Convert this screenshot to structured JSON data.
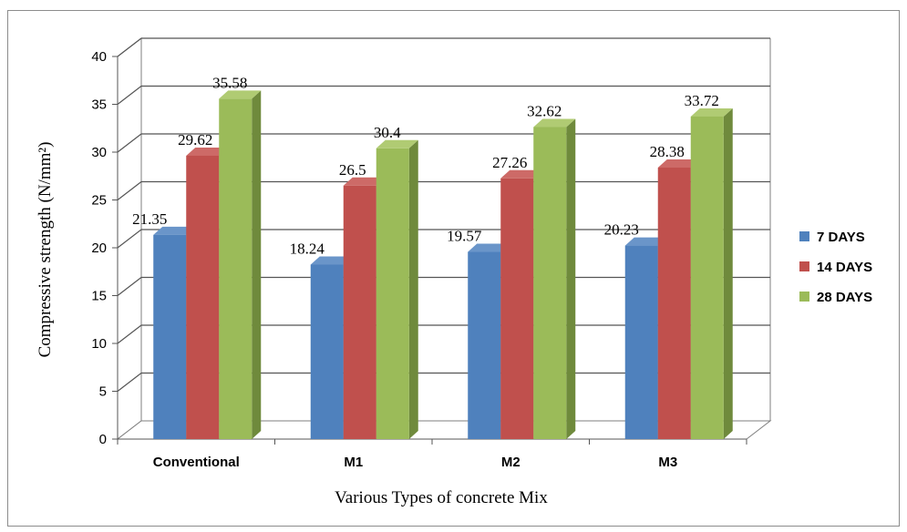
{
  "chart_data": {
    "type": "bar",
    "title": "",
    "xlabel": "Various Types of concrete Mix",
    "ylabel": "Compressive strength (N/mm²)",
    "ylim": [
      0,
      40
    ],
    "ytick_step": 5,
    "grid": true,
    "legend_position": "right",
    "categories": [
      "Conventional",
      "M1",
      "M2",
      "M3"
    ],
    "series": [
      {
        "name": "7 DAYS",
        "color": "#4f81bd",
        "side": "#375c8a",
        "top": "#6a95c9",
        "values": [
          21.35,
          18.24,
          19.57,
          20.23
        ],
        "labels": [
          "21.35",
          "18.24",
          "19.57",
          "20.23"
        ]
      },
      {
        "name": "14 DAYS",
        "color": "#c0504d",
        "side": "#8c3836",
        "top": "#cd6a67",
        "values": [
          29.62,
          26.5,
          27.26,
          28.38
        ],
        "labels": [
          "29.62",
          "26.5",
          "27.26",
          "28.38"
        ]
      },
      {
        "name": "28 DAYS",
        "color": "#9bbb59",
        "side": "#6f8a3c",
        "top": "#b0cb73",
        "values": [
          35.58,
          30.4,
          32.62,
          33.72
        ],
        "labels": [
          "35.58",
          "30.4",
          "32.62",
          "33.72"
        ]
      }
    ]
  }
}
